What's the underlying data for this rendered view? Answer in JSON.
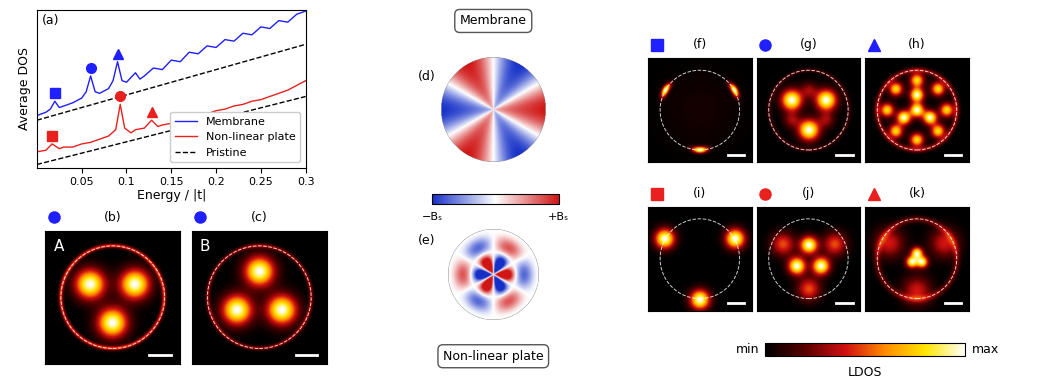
{
  "chart_data": {
    "type": "line",
    "label": "(a)",
    "x_label": "Energy / |t|",
    "y_label": "Average DOS",
    "xlim": [
      0,
      0.3
    ],
    "xticks": [
      0.05,
      0.1,
      0.15,
      0.2,
      0.25,
      0.3
    ],
    "ylim": [
      0,
      1
    ],
    "tick_labels": "x",
    "legend": "lower right",
    "series": [
      {
        "name": "Membrane",
        "color": "#1f1fff",
        "line_style": "solid",
        "x": [
          0,
          0.01,
          0.015,
          0.02,
          0.025,
          0.03,
          0.04,
          0.05,
          0.055,
          0.06,
          0.065,
          0.07,
          0.08,
          0.085,
          0.09,
          0.095,
          0.1,
          0.105,
          0.11,
          0.115,
          0.12,
          0.13,
          0.14,
          0.15,
          0.16,
          0.17,
          0.18,
          0.19,
          0.2,
          0.21,
          0.22,
          0.23,
          0.24,
          0.25,
          0.26,
          0.27,
          0.28,
          0.29,
          0.3
        ],
        "values": [
          0.33,
          0.35,
          0.37,
          0.42,
          0.38,
          0.39,
          0.41,
          0.44,
          0.48,
          0.58,
          0.48,
          0.47,
          0.5,
          0.55,
          0.67,
          0.55,
          0.54,
          0.57,
          0.6,
          0.56,
          0.58,
          0.63,
          0.62,
          0.68,
          0.67,
          0.73,
          0.72,
          0.77,
          0.76,
          0.81,
          0.8,
          0.85,
          0.84,
          0.89,
          0.88,
          0.93,
          0.92,
          0.97,
          0.99
        ]
      },
      {
        "name": "Non-linear plate",
        "color": "#e8211f",
        "line_style": "solid",
        "x": [
          0,
          0.01,
          0.017,
          0.025,
          0.03,
          0.04,
          0.05,
          0.06,
          0.07,
          0.08,
          0.088,
          0.093,
          0.098,
          0.105,
          0.11,
          0.12,
          0.128,
          0.135,
          0.14,
          0.15,
          0.16,
          0.17,
          0.18,
          0.19,
          0.2,
          0.21,
          0.22,
          0.23,
          0.24,
          0.25,
          0.26,
          0.27,
          0.28,
          0.29,
          0.3
        ],
        "values": [
          0.1,
          0.11,
          0.15,
          0.12,
          0.13,
          0.13,
          0.15,
          0.16,
          0.18,
          0.2,
          0.24,
          0.4,
          0.25,
          0.22,
          0.24,
          0.25,
          0.3,
          0.26,
          0.27,
          0.28,
          0.3,
          0.31,
          0.33,
          0.34,
          0.36,
          0.37,
          0.39,
          0.4,
          0.42,
          0.43,
          0.45,
          0.47,
          0.49,
          0.52,
          0.55
        ]
      },
      {
        "name": "Pristine",
        "color": "#000000",
        "line_style": "dashed",
        "x": [
          0,
          0.3
        ],
        "values": [
          0.3,
          0.78
        ]
      },
      {
        "name": "Pristine",
        "color": "#000000",
        "line_style": "dashed",
        "x": [
          0,
          0.3
        ],
        "values": [
          0.02,
          0.45
        ]
      },
      {
        "type": "scatter",
        "marker": "square",
        "color": "#1f1fff",
        "x": [
          0.02
        ],
        "values": [
          0.47
        ]
      },
      {
        "type": "scatter",
        "marker": "circle",
        "color": "#1f1fff",
        "x": [
          0.06
        ],
        "values": [
          0.63
        ]
      },
      {
        "type": "scatter",
        "marker": "triangle",
        "color": "#1f1fff",
        "x": [
          0.09
        ],
        "values": [
          0.72
        ]
      },
      {
        "type": "scatter",
        "marker": "square",
        "color": "#e8211f",
        "x": [
          0.017
        ],
        "values": [
          0.2
        ]
      },
      {
        "type": "scatter",
        "marker": "circle",
        "color": "#e8211f",
        "x": [
          0.093
        ],
        "values": [
          0.45
        ]
      },
      {
        "type": "scatter",
        "marker": "triangle",
        "color": "#e8211f",
        "x": [
          0.128
        ],
        "values": [
          0.35
        ]
      }
    ]
  },
  "maps": [
    {
      "label": "(b)",
      "text": "A",
      "marker": "circle",
      "color": "#1f1fff"
    },
    {
      "label": "(c)",
      "text": "B",
      "marker": "circle",
      "color": "#1f1fff"
    },
    {
      "label": "(f)",
      "marker": "square",
      "color": "#1f1fff"
    },
    {
      "label": "(g)",
      "marker": "circle",
      "color": "#1f1fff"
    },
    {
      "label": "(h)",
      "marker": "triangle",
      "color": "#1f1fff"
    },
    {
      "label": "(i)",
      "marker": "square",
      "color": "#e8211f"
    },
    {
      "label": "(j)",
      "marker": "circle",
      "color": "#e8211f"
    },
    {
      "label": "(k)",
      "marker": "triangle",
      "color": "#e8211f"
    }
  ],
  "strain_maps": [
    {
      "label": "(d)",
      "title": "Membrane"
    },
    {
      "label": "(e)",
      "title": "Non-linear plate"
    }
  ],
  "strain_colorbar": {
    "min_label": "−Bₛ",
    "max_label": "+Bₛ"
  },
  "ldos_colorbar": {
    "label": "LDOS",
    "min_label": "min",
    "max_label": "max"
  }
}
